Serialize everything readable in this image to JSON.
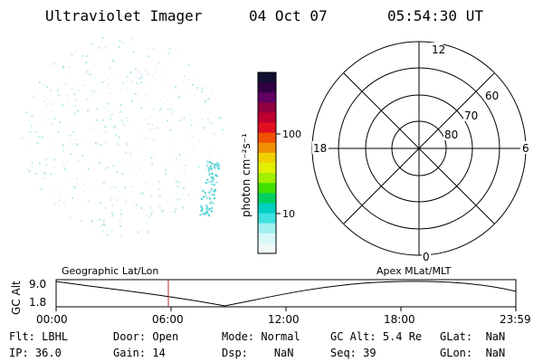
{
  "header": {
    "instrument": "Ultraviolet Imager",
    "date": "04 Oct 07",
    "time": "05:54:30 UT"
  },
  "colorbar": {
    "label": "photon cm⁻²s⁻¹",
    "ticks": [
      "100",
      "10"
    ],
    "colors": [
      "#101030",
      "#300040",
      "#600060",
      "#900040",
      "#c00030",
      "#e01020",
      "#f05000",
      "#f09000",
      "#f0d000",
      "#e0f000",
      "#a0f000",
      "#40e000",
      "#00d060",
      "#00d0c0",
      "#40e0e0",
      "#a0f0f0",
      "#d8f8f8",
      "#f0f8f8"
    ]
  },
  "polar_plot": {
    "mlt_labels": {
      "top": "12",
      "bottom": "0",
      "left": "18",
      "right": "6"
    },
    "lat_labels": [
      "60",
      "70",
      "80"
    ]
  },
  "timeline": {
    "y_axis_label": "GC Alt",
    "y_ticks": [
      "9.0",
      "1.8"
    ],
    "left_title": "Geographic Lat/Lon",
    "right_title": "Apex MLat/MLT",
    "x_ticks": [
      "00:00",
      "06:00",
      "12:00",
      "18:00",
      "23:59"
    ],
    "current_time_marker": "05:54:30",
    "marker_color": "#b03030"
  },
  "status": {
    "row1": [
      {
        "label": "Flt:",
        "value": "LBHL"
      },
      {
        "label": "Door:",
        "value": "Open"
      },
      {
        "label": "Mode:",
        "value": "Normal"
      },
      {
        "label": "GC Alt:",
        "value": "5.4 Re"
      },
      {
        "label": "GLat:",
        "value": "NaN"
      }
    ],
    "row2": [
      {
        "label": "IP:",
        "value": "36.0"
      },
      {
        "label": "Gain:",
        "value": "14"
      },
      {
        "label": "Dsp:",
        "value": "NaN"
      },
      {
        "label": "Seq:",
        "value": "39"
      },
      {
        "label": "GLon:",
        "value": "NaN"
      }
    ]
  }
}
